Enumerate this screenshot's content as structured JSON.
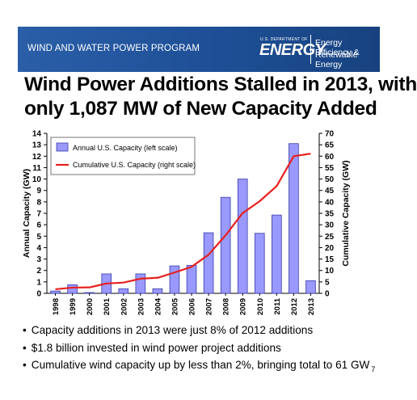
{
  "header": {
    "program": "WIND AND WATER POWER PROGRAM",
    "doe_small": "U.S. DEPARTMENT OF",
    "doe_big": "ENERGY",
    "eere_line1": "Energy Efficiency &",
    "eere_line2": "Renewable Energy",
    "background_color": "#1e4f96"
  },
  "slide": {
    "title_line1": "Wind Power Additions Stalled in 2013, with",
    "title_line2": "only 1,087 MW of New Capacity Added",
    "bullets": [
      "Capacity additions in 2013 were just 8% of 2012 additions",
      "$1.8 billion invested in wind power project additions",
      "Cumulative wind capacity up by less than 2%, bringing total to 61 GW"
    ],
    "page_number": "7"
  },
  "chart_data": {
    "type": "bar",
    "categories": [
      "1998",
      "1999",
      "2000",
      "2001",
      "2002",
      "2003",
      "2004",
      "2005",
      "2006",
      "2007",
      "2008",
      "2009",
      "2010",
      "2011",
      "2012",
      "2013"
    ],
    "series": [
      {
        "name": "Annual U.S. Capacity (left scale)",
        "type": "bar",
        "axis": "left",
        "color": "#9999ff",
        "values": [
          0.2,
          0.75,
          0.07,
          1.7,
          0.4,
          1.7,
          0.4,
          2.4,
          2.45,
          5.3,
          8.4,
          10.0,
          5.25,
          6.85,
          13.1,
          1.1
        ]
      },
      {
        "name": "Cumulative U.S. Capacity (right scale)",
        "type": "line",
        "axis": "right",
        "color": "#e8201e",
        "values": [
          1.8,
          2.5,
          2.6,
          4.3,
          4.7,
          6.4,
          6.8,
          9.1,
          11.6,
          16.9,
          25.4,
          35.1,
          40.3,
          46.9,
          60.0,
          61.1
        ]
      }
    ],
    "ylabel": "Annual Capacity (GW)",
    "ylabel_right": "Cumulative Capacity (GW)",
    "ylim": [
      0,
      14
    ],
    "ylim_right": [
      0,
      70
    ],
    "yticks": [
      "0",
      "1",
      "2",
      "3",
      "4",
      "5",
      "6",
      "7",
      "8",
      "9",
      "10",
      "11",
      "12",
      "13",
      "14"
    ],
    "yticks_right": [
      "0",
      "5",
      "10",
      "15",
      "20",
      "25",
      "30",
      "35",
      "40",
      "45",
      "50",
      "55",
      "60",
      "65",
      "70"
    ],
    "legend_position": "top-left",
    "grid": false
  }
}
